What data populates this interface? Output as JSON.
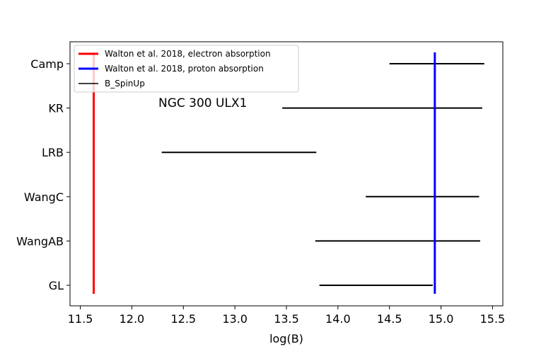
{
  "chart_data": {
    "type": "range",
    "xlabel": "log(B)",
    "ylabel": "",
    "xlim": [
      11.4,
      15.6
    ],
    "xticks": [
      "11.5",
      "12.0",
      "12.5",
      "13.0",
      "13.5",
      "14.0",
      "14.5",
      "15.0",
      "15.5"
    ],
    "categories": [
      "GL",
      "WangAB",
      "WangC",
      "LRB",
      "KR",
      "Camp"
    ],
    "annotation": "NGC 300 ULX1",
    "legend_position": "top-left",
    "series": [
      {
        "name": "B_SpinUp",
        "color": "#000000",
        "ranges": [
          {
            "category": "GL",
            "low": 13.82,
            "high": 14.92
          },
          {
            "category": "WangAB",
            "low": 13.78,
            "high": 15.38
          },
          {
            "category": "WangC",
            "low": 14.27,
            "high": 15.37
          },
          {
            "category": "LRB",
            "low": 12.29,
            "high": 13.79
          },
          {
            "category": "KR",
            "low": 13.46,
            "high": 15.4
          },
          {
            "category": "Camp",
            "low": 14.5,
            "high": 15.42
          }
        ]
      }
    ],
    "vlines": [
      {
        "name": "Walton et al. 2018, electron absorption",
        "x": 11.63,
        "color": "#ff0000"
      },
      {
        "name": "Walton et al. 2018, proton absorption",
        "x": 14.94,
        "color": "#0000ff"
      }
    ]
  }
}
